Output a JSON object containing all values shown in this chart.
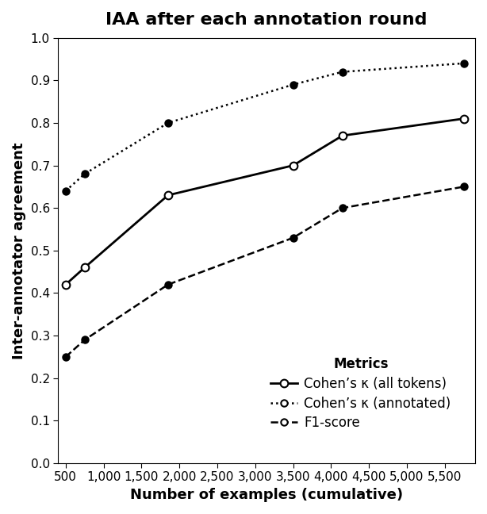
{
  "title": "IAA after each annotation round",
  "xlabel": "Number of examples (cumulative)",
  "ylabel": "Inter-annotator agreement",
  "xlim": [
    400,
    5900
  ],
  "ylim": [
    0.0,
    1.0
  ],
  "xticks": [
    500,
    1000,
    1500,
    2000,
    2500,
    3000,
    3500,
    4000,
    4500,
    5000,
    5500
  ],
  "yticks": [
    0.0,
    0.1,
    0.2,
    0.3,
    0.4,
    0.5,
    0.6,
    0.7,
    0.8,
    0.9,
    1.0
  ],
  "cohens_kappa_all_x": [
    500,
    750,
    1850,
    3500,
    4150,
    5750
  ],
  "cohens_kappa_all_y": [
    0.42,
    0.46,
    0.63,
    0.7,
    0.77,
    0.81
  ],
  "cohens_kappa_ann_x": [
    500,
    750,
    1850,
    3500,
    4150,
    5750
  ],
  "cohens_kappa_ann_y": [
    0.64,
    0.68,
    0.8,
    0.89,
    0.92,
    0.94
  ],
  "f1_score_x": [
    500,
    750,
    1850,
    3500,
    4150,
    5750
  ],
  "f1_score_y": [
    0.25,
    0.29,
    0.42,
    0.53,
    0.6,
    0.65
  ],
  "legend_title": "Metrics",
  "legend_labels": [
    "Cohen’s κ (all tokens)",
    "Cohen’s κ (annotated)",
    "F1-score"
  ],
  "line_color": "#000000",
  "background_color": "#ffffff",
  "title_fontsize": 16,
  "label_fontsize": 13,
  "tick_fontsize": 11,
  "legend_fontsize": 12
}
